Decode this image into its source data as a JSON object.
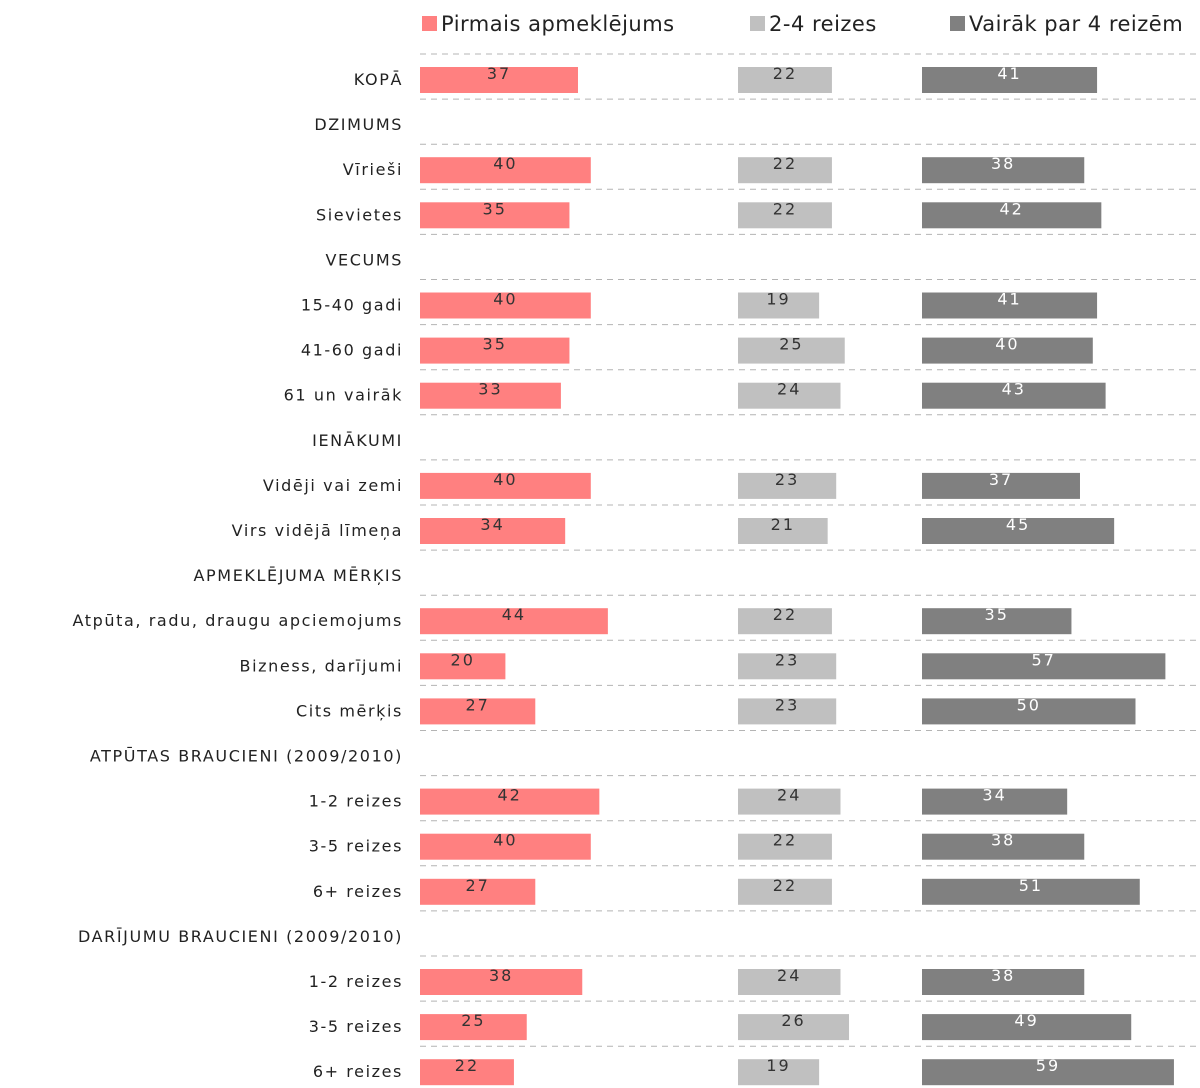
{
  "chart_data": {
    "type": "bar",
    "orientation": "horizontal",
    "stacked": false,
    "xlim": [
      0,
      100
    ],
    "grid": false,
    "legend_position": "top",
    "series": [
      {
        "name": "Pirmais apmeklējums",
        "color": "#ff8080"
      },
      {
        "name": "2-4 reizes",
        "color": "#c0c0c0"
      },
      {
        "name": "Vairāk par 4 reizēm",
        "color": "#808080"
      }
    ],
    "rows": [
      {
        "label": "KOPĀ",
        "values": [
          37,
          22,
          41
        ]
      },
      {
        "label": "DZIMUMS",
        "values": null
      },
      {
        "label": "Vīrieši",
        "values": [
          40,
          22,
          38
        ]
      },
      {
        "label": "Sievietes",
        "values": [
          35,
          22,
          42
        ]
      },
      {
        "label": "VECUMS",
        "values": null
      },
      {
        "label": "15-40 gadi",
        "values": [
          40,
          19,
          41
        ]
      },
      {
        "label": "41-60 gadi",
        "values": [
          35,
          25,
          40
        ]
      },
      {
        "label": "61 un vairāk",
        "values": [
          33,
          24,
          43
        ]
      },
      {
        "label": "IENĀKUMI",
        "values": null
      },
      {
        "label": "Vidēji vai zemi",
        "values": [
          40,
          23,
          37
        ]
      },
      {
        "label": "Virs vidējā līmeņa",
        "values": [
          34,
          21,
          45
        ]
      },
      {
        "label": "APMEKLĒJUMA MĒRĶIS",
        "values": null
      },
      {
        "label": "Atpūta, radu, draugu apciemojums",
        "values": [
          44,
          22,
          35
        ]
      },
      {
        "label": "Bizness, darījumi",
        "values": [
          20,
          23,
          57
        ]
      },
      {
        "label": "Cits mērķis",
        "values": [
          27,
          23,
          50
        ]
      },
      {
        "label": "ATPŪTAS BRAUCIENI (2009/2010)",
        "values": null
      },
      {
        "label": "1-2 reizes",
        "values": [
          42,
          24,
          34
        ]
      },
      {
        "label": "3-5 reizes",
        "values": [
          40,
          22,
          38
        ]
      },
      {
        "label": "6+ reizes",
        "values": [
          27,
          22,
          51
        ]
      },
      {
        "label": "DARĪJUMU BRAUCIENI (2009/2010)",
        "values": null
      },
      {
        "label": "1-2 reizes",
        "values": [
          38,
          24,
          38
        ]
      },
      {
        "label": "3-5 reizes",
        "values": [
          25,
          26,
          49
        ]
      },
      {
        "label": "6+ reizes",
        "values": [
          22,
          19,
          59
        ]
      }
    ]
  }
}
